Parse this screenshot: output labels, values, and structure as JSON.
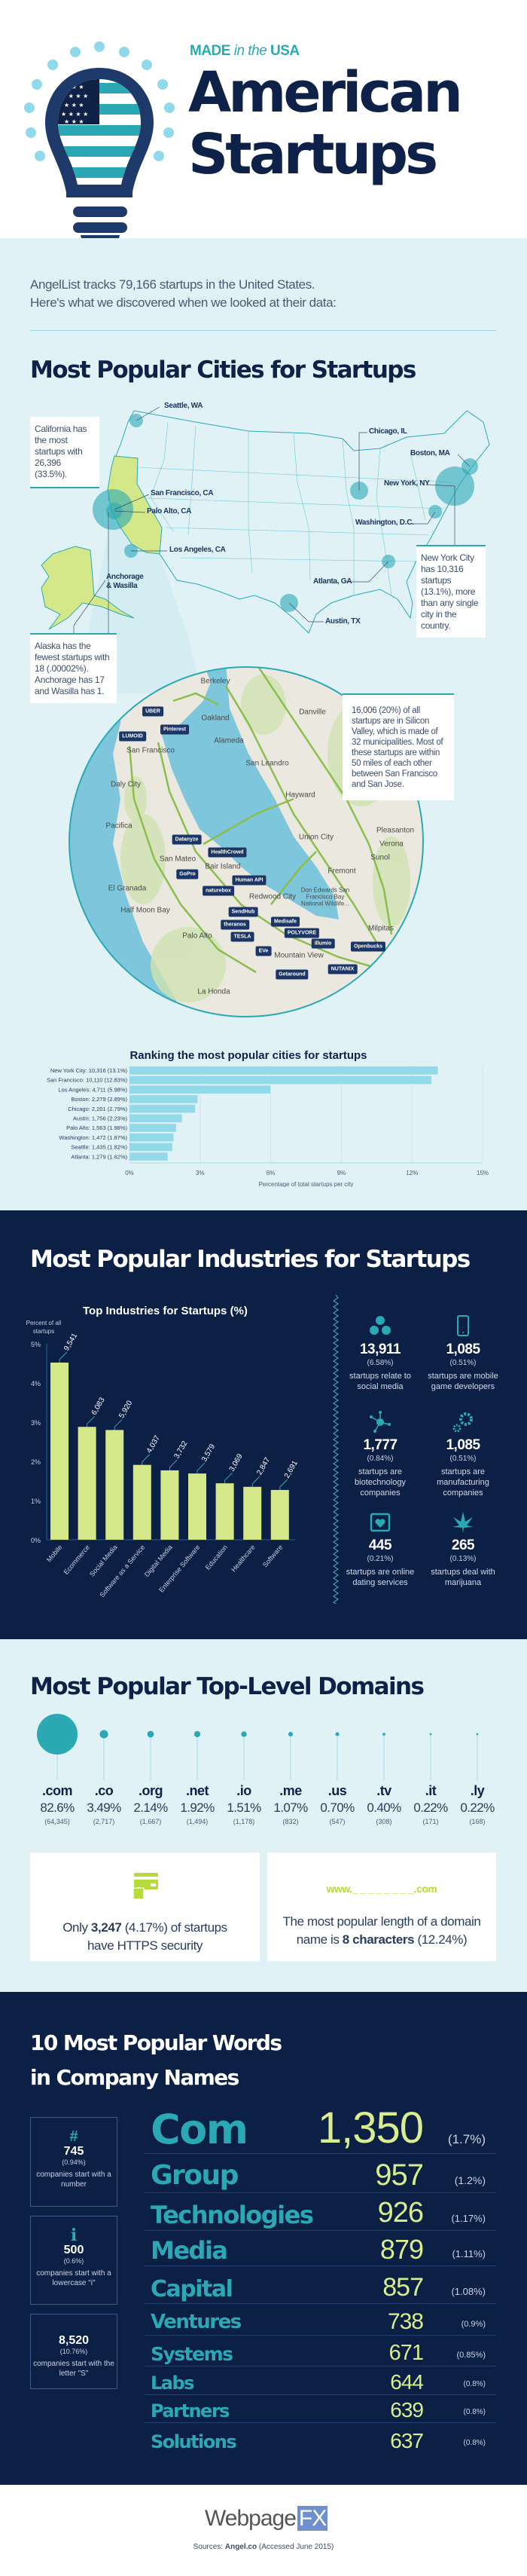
{
  "header": {
    "kicker_made": "MADE",
    "kicker_in_the": "in the",
    "kicker_usa": "USA",
    "title_line1": "American",
    "title_line2": "Startups",
    "intro_line1": "AngelList tracks 79,166 startups in the United States.",
    "intro_line2": "Here's what we discovered when we looked at their data:"
  },
  "colors": {
    "navy": "#0c1f45",
    "teal": "#2aa9b5",
    "light_bg": "#e1f2f6",
    "lime": "#d4e88a",
    "bar_blue": "#92d9ea"
  },
  "cities": {
    "title": "Most Popular Cities for Startups",
    "map_labels": [
      "Seattle, WA",
      "Chicago, IL",
      "Boston, MA",
      "New York, NY",
      "San Francisco, CA",
      "Palo Alto, CA",
      "Washington, D.C.",
      "Los Angeles, CA",
      "Anchorage & Wasilla",
      "Atlanta, GA",
      "Austin, TX"
    ],
    "california_note": "California has the most startups with 26,396 (33.5%).",
    "alaska_note": "Alaska has the fewest startups with 18 (.00002%). Anchorage has 17 and Wasilla has 1.",
    "nyc_note": "New York City has 10,316 startups (13.1%), more than any single city in the country.",
    "silicon_valley_note": "16,006 (20%) of all startups are in Silicon Valley, which is made of 32 municipalities. Most of these startups are within 50 miles of each other between San Francisco and San Jose.",
    "bay_places": [
      "Berkeley",
      "Oakland",
      "Alameda",
      "San Leandro",
      "Daly City",
      "Hayward",
      "Pleasanton",
      "Verona",
      "Pacifica",
      "Union City",
      "Sunol",
      "Fremont",
      "San Mateo",
      "El Granada",
      "Half Moon Bay",
      "Bair Island",
      "Redwood City",
      "Palo Alto",
      "Mountain View",
      "Milpitas",
      "La Honda",
      "San Francisco",
      "Danville",
      "Don Edwards San Francisco Bay National Wildlife..."
    ],
    "startup_logos": [
      "UBER",
      "Pinterest",
      "LUMOID",
      "Datanyze",
      "HealthCrowd",
      "GoPro",
      "Human API",
      "naturebox",
      "SendHub",
      "theranos",
      "Medisafe",
      "POLYVORE",
      "TESLA",
      "illumio",
      "Openbucks",
      "EVe",
      "NUTANIX",
      "Getaround"
    ]
  },
  "chart_data": [
    {
      "type": "bar",
      "orientation": "horizontal",
      "title": "Ranking the most popular cities for startups",
      "xlabel": "Percentage of total startups per city",
      "xlim": [
        0,
        15
      ],
      "xticks": [
        "0%",
        "3%",
        "6%",
        "9%",
        "12%",
        "15%"
      ],
      "grid": true,
      "categories": [
        "New York City: 10,316 (13.1%)",
        "San Francisco: 10,110 (12.83%)",
        "Los Angeles: 4,711 (5.98%)",
        "Boston: 2,279 (2.89%)",
        "Chicago: 2,201 (2.79%)",
        "Austin: 1,756 (2.23%)",
        "Palo Alto: 1,563 (1.98%)",
        "Washington: 1,472 (1.87%)",
        "Seattle: 1,435 (1.82%)",
        "Atlanta: 1,279 (1.62%)"
      ],
      "values": [
        13.1,
        12.83,
        5.98,
        2.89,
        2.79,
        2.23,
        1.98,
        1.87,
        1.82,
        1.62
      ]
    },
    {
      "type": "bar",
      "title": "Top Industries for Startups (%)",
      "ylabel": "Percent of all startups",
      "ylim": [
        0,
        5
      ],
      "yticks": [
        "0%",
        "1%",
        "2%",
        "3%",
        "4%",
        "5%"
      ],
      "categories": [
        "Mobile",
        "Ecommerce",
        "Social Media",
        "Software as a Service",
        "Digital Media",
        "Enterprise Software",
        "Education",
        "Healthcare",
        "Software"
      ],
      "values": [
        4.52,
        2.88,
        2.8,
        1.91,
        1.77,
        1.69,
        1.44,
        1.35,
        1.27
      ],
      "data_labels": [
        "9,541",
        "6,083",
        "5,920",
        "4,037",
        "3,732",
        "3,579",
        "3,069",
        "2,847",
        "2,691"
      ]
    }
  ],
  "industries": {
    "title": "Most Popular Industries for Startups",
    "stats": [
      {
        "icon": "social-media-icon",
        "num": "13,911",
        "pct": "(6.58%)",
        "desc": "startups relate to social media"
      },
      {
        "icon": "mobile-phone-icon",
        "num": "1,085",
        "pct": "(0.51%)",
        "desc": "startups are mobile game developers"
      },
      {
        "icon": "molecule-icon",
        "num": "1,777",
        "pct": "(0.84%)",
        "desc": "startups are biotechnology companies"
      },
      {
        "icon": "gears-icon",
        "num": "1,085",
        "pct": "(0.51%)",
        "desc": "startups are manufacturing companies"
      },
      {
        "icon": "calendar-heart-icon",
        "num": "445",
        "pct": "(0.21%)",
        "desc": "startups are online dating services"
      },
      {
        "icon": "cannabis-leaf-icon",
        "num": "265",
        "pct": "(0.13%)",
        "desc": "startups deal with marijuana"
      }
    ]
  },
  "domains": {
    "title": "Most Popular Top-Level Domains",
    "items": [
      {
        "tld": ".com",
        "pct": "82.6%",
        "value": 82.6,
        "count": "(64,345)"
      },
      {
        "tld": ".co",
        "pct": "3.49%",
        "value": 3.49,
        "count": "(2,717)"
      },
      {
        "tld": ".org",
        "pct": "2.14%",
        "value": 2.14,
        "count": "(1,667)"
      },
      {
        "tld": ".net",
        "pct": "1.92%",
        "value": 1.92,
        "count": "(1,494)"
      },
      {
        "tld": ".io",
        "pct": "1.51%",
        "value": 1.51,
        "count": "(1,178)"
      },
      {
        "tld": ".me",
        "pct": "1.07%",
        "value": 1.07,
        "count": "(832)"
      },
      {
        "tld": ".us",
        "pct": "0.70%",
        "value": 0.7,
        "count": "(547)"
      },
      {
        "tld": ".tv",
        "pct": "0.40%",
        "value": 0.4,
        "count": "(308)"
      },
      {
        "tld": ".it",
        "pct": "0.22%",
        "value": 0.22,
        "count": "(171)"
      },
      {
        "tld": ".ly",
        "pct": "0.22%",
        "value": 0.22,
        "count": "(168)"
      }
    ],
    "https_pre": "Only ",
    "https_bold": "3,247",
    "https_post1": " (4.17%) of startups",
    "https_post2": "have HTTPS security",
    "length_sample": "www._ _ _ _ _ _ _ _.com",
    "length_pre": "The most popular length of a domain",
    "length_mid": "name is ",
    "length_bold": "8 characters",
    "length_post": " (12.24%)"
  },
  "words": {
    "title_line1": "10 Most Popular Words",
    "title_line2": "in Company Names",
    "side_stats": [
      {
        "symbol": "#",
        "num": "745",
        "pct": "(0.94%)",
        "desc": "companies start with a number"
      },
      {
        "symbol": "i",
        "num": "500",
        "pct": "(0.6%)",
        "desc": "companies start with a lowercase \"i\""
      },
      {
        "symbol": "",
        "num": "8,520",
        "pct": "(10.76%)",
        "desc": "companies start with the letter \"S\""
      }
    ],
    "rows": [
      {
        "word": "Com",
        "count": "1,350",
        "pct": "(1.7%)"
      },
      {
        "word": "Group",
        "count": "957",
        "pct": "(1.2%)"
      },
      {
        "word": "Technologies",
        "count": "926",
        "pct": "(1.17%)"
      },
      {
        "word": "Media",
        "count": "879",
        "pct": "(1.11%)"
      },
      {
        "word": "Capital",
        "count": "857",
        "pct": "(1.08%)"
      },
      {
        "word": "Ventures",
        "count": "738",
        "pct": "(0.9%)"
      },
      {
        "word": "Systems",
        "count": "671",
        "pct": "(0.85%)"
      },
      {
        "word": "Labs",
        "count": "644",
        "pct": "(0.8%)"
      },
      {
        "word": "Partners",
        "count": "639",
        "pct": "(0.8%)"
      },
      {
        "word": "Solutions",
        "count": "637",
        "pct": "(0.8%)"
      }
    ]
  },
  "footer": {
    "logo_webpage": "Webpage",
    "logo_fx": "FX",
    "sources_label": "Sources: ",
    "sources_site": "Angel.co",
    "sources_note": " (Accessed June 2015)"
  }
}
